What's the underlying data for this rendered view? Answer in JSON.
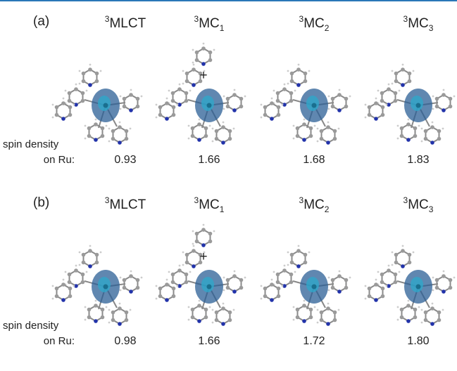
{
  "panels": [
    {
      "label": "(a)",
      "states": [
        {
          "sup": "3",
          "main": "MLCT"
        },
        {
          "sup": "3",
          "main": "MC",
          "sub": "1",
          "ion_pair_symbol": "+"
        },
        {
          "sup": "3",
          "main": "MC",
          "sub": "2"
        },
        {
          "sup": "3",
          "main": "MC",
          "sub": "3"
        }
      ],
      "row_label": [
        "spin density",
        "on Ru:"
      ],
      "values": [
        "0.93",
        "1.66",
        "1.68",
        "1.83"
      ]
    },
    {
      "label": "(b)",
      "states": [
        {
          "sup": "3",
          "main": "MLCT"
        },
        {
          "sup": "3",
          "main": "MC",
          "sub": "1",
          "ion_pair_symbol": "+"
        },
        {
          "sup": "3",
          "main": "MC",
          "sub": "2"
        },
        {
          "sup": "3",
          "main": "MC",
          "sub": "3"
        }
      ],
      "row_label": [
        "spin density",
        "on Ru:"
      ],
      "values": [
        "0.98",
        "1.66",
        "1.72",
        "1.80"
      ]
    }
  ]
}
